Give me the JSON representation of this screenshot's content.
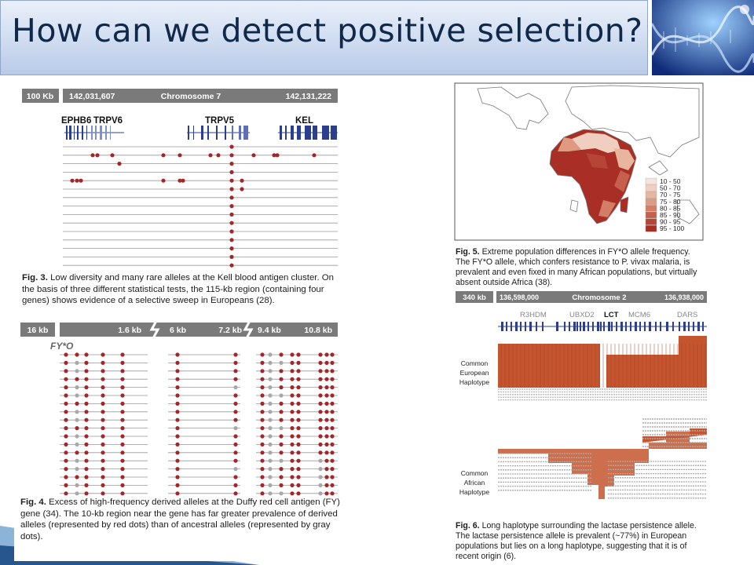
{
  "slide": {
    "title": "How can we detect positive selection?"
  },
  "fig3": {
    "scale": "100 Kb",
    "coord_left": "142,031,607",
    "chrom": "Chromosome 7",
    "coord_right": "142,131,222",
    "genes": [
      "EPHB6",
      "TRPV6",
      "TRPV5",
      "KEL"
    ],
    "cap_label": "Fig. 3.",
    "cap_text": "Low diversity and many rare alleles at the Kell blood antigen cluster. On the basis of three different statistical tests, the 115-kb region (containing four genes) shows evidence of a selective sweep in Europeans (28)."
  },
  "fig4": {
    "scale": "16 kb",
    "segments": [
      "1.6 kb",
      "6 kb",
      "7.2 kb",
      "9.4 kb",
      "10.8 kb"
    ],
    "allele": "FY*O",
    "cap_label": "Fig. 4.",
    "cap_text": "Excess of high-frequency derived alleles at the Duffy red cell antigen (FY) gene (34). The 10-kb region near the gene has far greater prevalence of derived alleles (represented by red dots) than of ancestral alleles (represented by gray dots)."
  },
  "fig5": {
    "legend": [
      "10 - 50",
      "50 - 70",
      "70 - 75",
      "75 - 80",
      "80 - 85",
      "85 - 90",
      "90 - 95",
      "95 - 100"
    ],
    "legend_colors": [
      "#f6e4dc",
      "#f0cfc0",
      "#e8b59f",
      "#e09a82",
      "#d37d66",
      "#c6604c",
      "#b64537",
      "#a82e26"
    ],
    "cap_label": "Fig. 5.",
    "cap_text": "Extreme population differences in FY*O allele frequency. The FY*O allele, which confers resistance to P. vivax malaria, is prevalent and even fixed in many African populations, but virtually absent outside Africa (38)."
  },
  "fig6": {
    "scale": "340 kb",
    "coord_left": "136,598,000",
    "chrom": "Chromosome 2",
    "coord_right": "136,938,000",
    "genes": [
      "R3HDM",
      "UBXD2",
      "LCT",
      "MCM6",
      "DARS"
    ],
    "label_eu": [
      "Common",
      "European",
      "Haplotype"
    ],
    "label_af": [
      "Common",
      "African",
      "Haplotype"
    ],
    "cap_label": "Fig. 6.",
    "cap_text": "Long haplotype surrounding the lactase persistence allele. The lactase persistence allele is prevalent (~77%) in European populations but lies on a long haplotype, suggesting that it is of recent origin (6)."
  },
  "colors": {
    "red_dot": "#a3272a",
    "gray_dot": "#a8a8a8",
    "haplotype_red": "#c4552e",
    "gene_blue": "#2d3f8c"
  }
}
